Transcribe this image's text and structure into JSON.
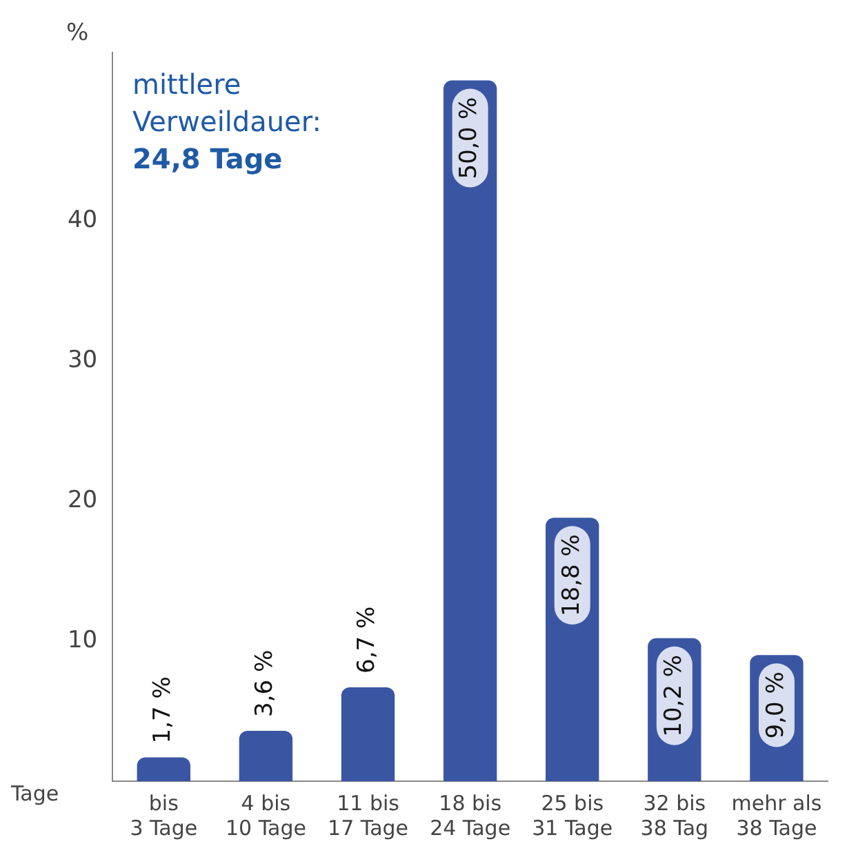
{
  "chart_data": {
    "type": "bar",
    "categories": [
      "bis\n3 Tage",
      "4 bis\n10 Tage",
      "11 bis\n17 Tage",
      "18 bis\n24 Tage",
      "25 bis\n31 Tage",
      "32 bis\n38 Tag",
      "mehr als\n38 Tage"
    ],
    "values": [
      1.7,
      3.6,
      6.7,
      50.0,
      18.8,
      10.2,
      9.0
    ],
    "value_labels": [
      "1,7 %",
      "3,6 %",
      "6,7 %",
      "50,0 %",
      "18,8 %",
      "10,2 %",
      "9,0 %"
    ],
    "color": "#3a56a3",
    "xlabel": "Tage",
    "ylabel": "%",
    "ylim": [
      0,
      52
    ],
    "yticks": [
      10,
      20,
      30,
      40
    ],
    "annotations": [
      "mittlere Verweildauer:",
      "24,8 Tage"
    ],
    "grid": false,
    "legend": false
  }
}
